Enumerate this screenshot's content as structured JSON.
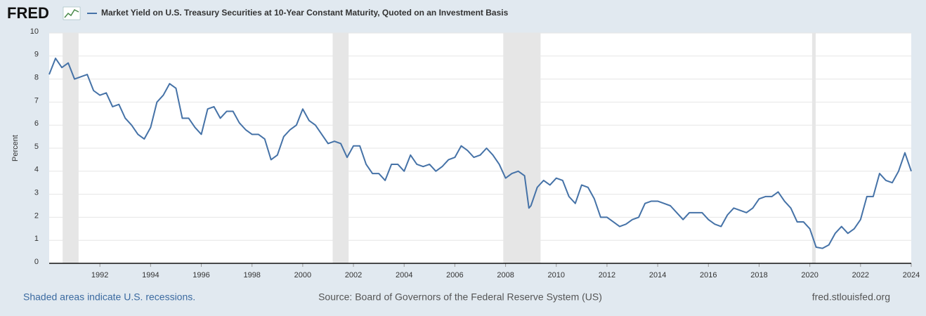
{
  "logo": "FRED",
  "chart_data": {
    "type": "line",
    "title": "Market Yield on U.S. Treasury Securities at 10-Year Constant Maturity, Quoted on an Investment Basis",
    "ylabel": "Percent",
    "xlim": [
      1990,
      2024
    ],
    "xticks": [
      1992,
      1994,
      1996,
      1998,
      2000,
      2002,
      2004,
      2006,
      2008,
      2010,
      2012,
      2014,
      2016,
      2018,
      2020,
      2022,
      2024
    ],
    "ylim": [
      0,
      10
    ],
    "yticks": [
      0,
      1,
      2,
      3,
      4,
      5,
      6,
      7,
      8,
      9,
      10
    ],
    "grid": true,
    "recessions": [
      [
        1990.53,
        1991.16
      ],
      [
        2001.18,
        2001.81
      ],
      [
        2007.91,
        2009.38
      ],
      [
        2020.09,
        2020.23
      ]
    ],
    "x": [
      1990,
      1990.25,
      1990.5,
      1990.75,
      1991,
      1991.25,
      1991.5,
      1991.75,
      1992,
      1992.25,
      1992.5,
      1992.75,
      1993,
      1993.25,
      1993.5,
      1993.75,
      1994,
      1994.25,
      1994.5,
      1994.75,
      1995,
      1995.25,
      1995.5,
      1995.75,
      1996,
      1996.25,
      1996.5,
      1996.75,
      1997,
      1997.25,
      1997.5,
      1997.75,
      1998,
      1998.25,
      1998.5,
      1998.75,
      1999,
      1999.25,
      1999.5,
      1999.75,
      2000,
      2000.25,
      2000.5,
      2000.75,
      2001,
      2001.25,
      2001.5,
      2001.75,
      2002,
      2002.25,
      2002.5,
      2002.75,
      2003,
      2003.25,
      2003.5,
      2003.75,
      2004,
      2004.25,
      2004.5,
      2004.75,
      2005,
      2005.25,
      2005.5,
      2005.75,
      2006,
      2006.25,
      2006.5,
      2006.75,
      2007,
      2007.25,
      2007.5,
      2007.75,
      2008,
      2008.25,
      2008.5,
      2008.75,
      2008.92,
      2009,
      2009.25,
      2009.5,
      2009.75,
      2010,
      2010.25,
      2010.5,
      2010.75,
      2011,
      2011.25,
      2011.5,
      2011.75,
      2012,
      2012.25,
      2012.5,
      2012.75,
      2013,
      2013.25,
      2013.5,
      2013.75,
      2014,
      2014.25,
      2014.5,
      2014.75,
      2015,
      2015.25,
      2015.5,
      2015.75,
      2016,
      2016.25,
      2016.5,
      2016.75,
      2017,
      2017.25,
      2017.5,
      2017.75,
      2018,
      2018.25,
      2018.5,
      2018.75,
      2019,
      2019.25,
      2019.5,
      2019.75,
      2020,
      2020.25,
      2020.5,
      2020.75,
      2021,
      2021.25,
      2021.5,
      2021.75,
      2022,
      2022.25,
      2022.5,
      2022.75,
      2023,
      2023.25,
      2023.5,
      2023.75,
      2024
    ],
    "series": [
      {
        "name": "Market Yield on U.S. Treasury Securities at 10-Year Constant Maturity, Quoted on an Investment Basis",
        "color": "#4572a7",
        "values": [
          8.2,
          8.9,
          8.5,
          8.7,
          8.0,
          8.1,
          8.2,
          7.5,
          7.3,
          7.4,
          6.8,
          6.9,
          6.3,
          6.0,
          5.6,
          5.4,
          5.9,
          7.0,
          7.3,
          7.8,
          7.6,
          6.3,
          6.3,
          5.9,
          5.6,
          6.7,
          6.8,
          6.3,
          6.6,
          6.6,
          6.1,
          5.8,
          5.6,
          5.6,
          5.4,
          4.5,
          4.7,
          5.5,
          5.8,
          6.0,
          6.7,
          6.2,
          6.0,
          5.6,
          5.2,
          5.3,
          5.2,
          4.6,
          5.1,
          5.1,
          4.3,
          3.9,
          3.9,
          3.6,
          4.3,
          4.3,
          4.0,
          4.7,
          4.3,
          4.2,
          4.3,
          4.0,
          4.2,
          4.5,
          4.6,
          5.1,
          4.9,
          4.6,
          4.7,
          5.0,
          4.7,
          4.3,
          3.7,
          3.9,
          4.0,
          3.8,
          2.4,
          2.5,
          3.3,
          3.6,
          3.4,
          3.7,
          3.6,
          2.9,
          2.6,
          3.4,
          3.3,
          2.8,
          2.0,
          2.0,
          1.8,
          1.6,
          1.7,
          1.9,
          2.0,
          2.6,
          2.7,
          2.7,
          2.6,
          2.5,
          2.2,
          1.9,
          2.2,
          2.2,
          2.2,
          1.9,
          1.7,
          1.6,
          2.1,
          2.4,
          2.3,
          2.2,
          2.4,
          2.8,
          2.9,
          2.9,
          3.1,
          2.7,
          2.4,
          1.8,
          1.8,
          1.5,
          0.7,
          0.65,
          0.8,
          1.3,
          1.6,
          1.3,
          1.5,
          1.9,
          2.9,
          2.9,
          3.9,
          3.6,
          3.5,
          4.0,
          4.8,
          4.0
        ]
      }
    ]
  },
  "footer": {
    "note": "Shaded areas indicate U.S. recessions.",
    "source": "Source: Board of Governors of the Federal Reserve System (US)",
    "site": "fred.stlouisfed.org"
  }
}
